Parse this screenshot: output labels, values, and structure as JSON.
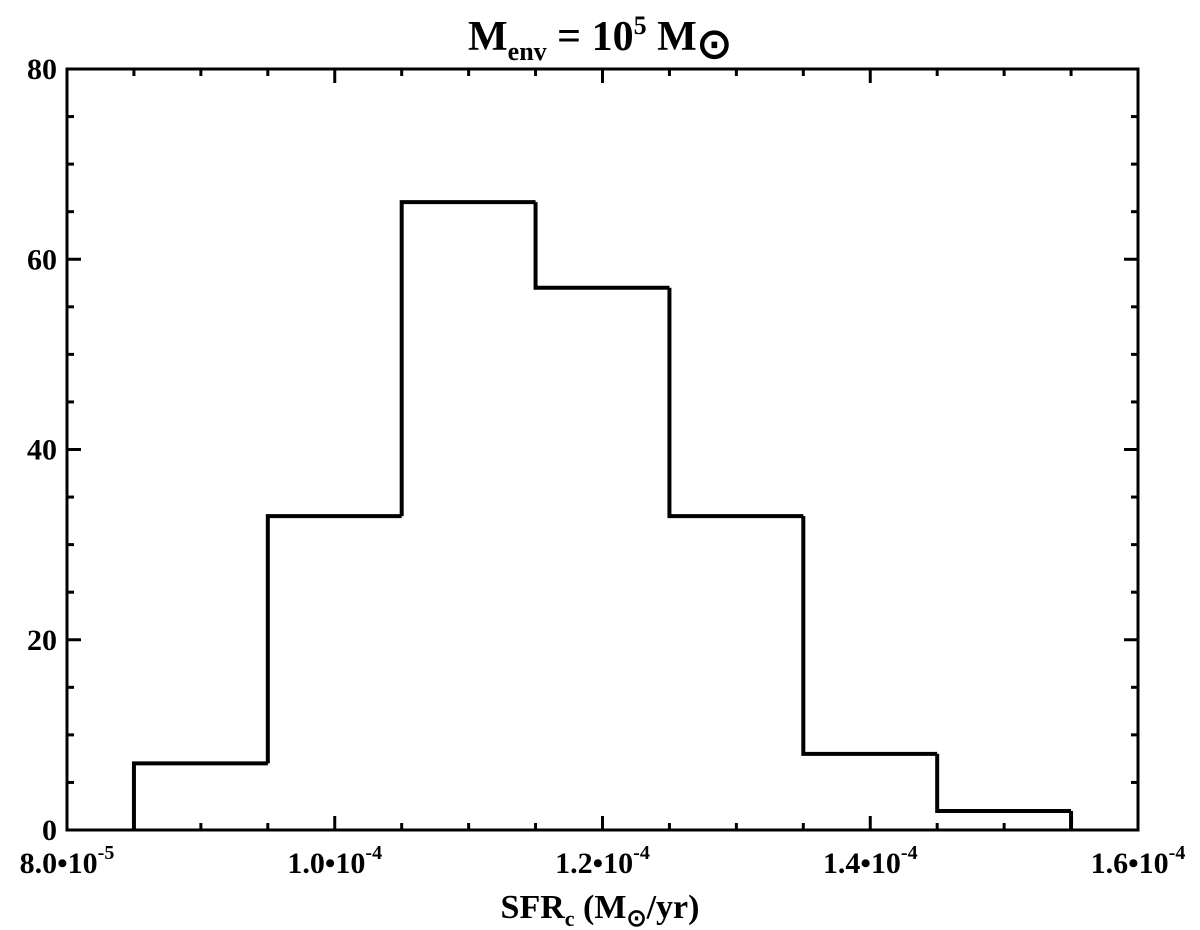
{
  "chart_data": {
    "type": "histogram",
    "title": [
      "M",
      "env",
      " = 10",
      "5",
      " M",
      "⊙"
    ],
    "x_label": [
      "SFR",
      "c",
      " (M",
      "⊙",
      "/yr)"
    ],
    "bins": [
      8.5e-05,
      9.5e-05,
      0.000105,
      0.000115,
      0.000125,
      0.000135,
      0.000145,
      0.000155
    ],
    "values": [
      7,
      33,
      66,
      57,
      33,
      8,
      2
    ],
    "color": "#000000",
    "xlim": [
      8e-05,
      0.00016
    ],
    "xticks": [
      {
        "value": 8e-05,
        "label": [
          "8.0•10",
          "-5"
        ]
      },
      {
        "value": 0.0001,
        "label": [
          "1.0•10",
          "-4"
        ]
      },
      {
        "value": 0.00012,
        "label": [
          "1.2•10",
          "-4"
        ]
      },
      {
        "value": 0.00014,
        "label": [
          "1.4•10",
          "-4"
        ]
      },
      {
        "value": 0.00016,
        "label": [
          "1.6•10",
          "-4"
        ]
      }
    ],
    "ylim": [
      0,
      80
    ],
    "yticks": [
      0,
      20,
      40,
      60,
      80
    ]
  }
}
